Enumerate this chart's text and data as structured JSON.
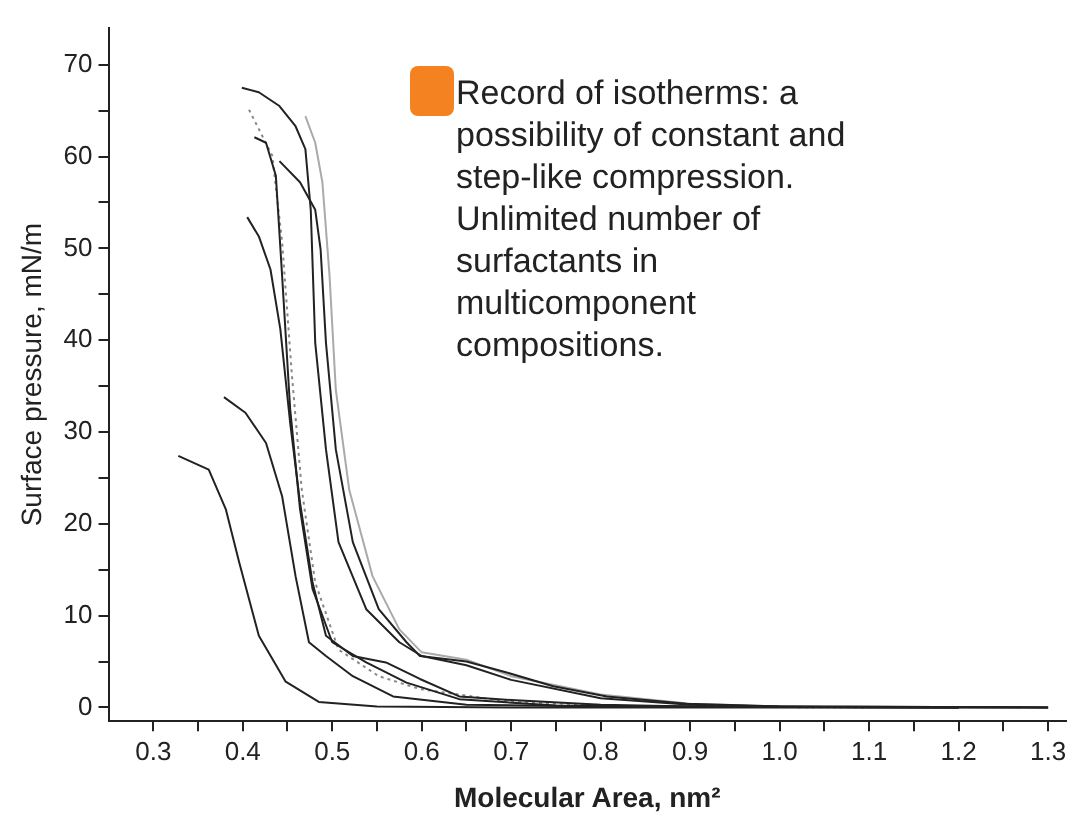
{
  "chart_data": {
    "type": "line",
    "xlabel": "Molecular Area, nm²",
    "ylabel": "Surface pressure, mN/m",
    "annotations": [
      "Record of isotherms: a possibility of constant and step-like compression. Unlimited number of surfactants in multicomponent compositions."
    ],
    "xlim": [
      0.25,
      1.32
    ],
    "ylim": [
      -1.5,
      74
    ],
    "xticks": [
      0.3,
      {
        "value": 0.35,
        "label": null
      },
      0.4,
      {
        "value": 0.45,
        "label": null
      },
      0.5,
      {
        "value": 0.55,
        "label": null
      },
      0.6,
      {
        "value": 0.65,
        "label": null
      },
      0.7,
      {
        "value": 0.75,
        "label": null
      },
      0.8,
      {
        "value": 0.85,
        "label": null
      },
      0.9,
      {
        "value": 0.95,
        "label": null
      },
      "1.0",
      {
        "value": 1.05,
        "label": null
      },
      1.1,
      {
        "value": 1.15,
        "label": null
      },
      1.2,
      {
        "value": 1.25,
        "label": null
      },
      1.3
    ],
    "yticks": [
      0,
      {
        "value": 5,
        "label": null
      },
      10,
      {
        "value": 15,
        "label": null
      },
      20,
      {
        "value": 25,
        "label": null
      },
      30,
      {
        "value": 35,
        "label": null
      },
      40,
      {
        "value": 45,
        "label": null
      },
      50,
      {
        "value": 55,
        "label": null
      },
      60,
      {
        "value": 65,
        "label": null
      },
      70
    ],
    "grid": false,
    "legend": false,
    "marker": "none",
    "series": [
      {
        "color": "#222222",
        "x": [
          0.328,
          0.362,
          0.381,
          0.396,
          0.418,
          0.448,
          0.485,
          0.55,
          0.7,
          1.0,
          1.3
        ],
        "values": [
          27.4,
          25.9,
          21.6,
          15.8,
          7.8,
          2.8,
          0.6,
          0.1,
          0.0,
          0.0,
          0.0
        ]
      },
      {
        "color": "#222222",
        "x": [
          0.379,
          0.403,
          0.426,
          0.444,
          0.459,
          0.474,
          0.493,
          0.523,
          0.568,
          0.65,
          0.8,
          1.2
        ],
        "values": [
          33.8,
          32.1,
          28.8,
          23.0,
          14.3,
          7.1,
          5.6,
          3.4,
          1.2,
          0.3,
          0.1,
          0.0
        ]
      },
      {
        "color": "#222222",
        "x": [
          0.405,
          0.418,
          0.431,
          0.442,
          0.453,
          0.464,
          0.478,
          0.493,
          0.523,
          0.56,
          0.598,
          0.642,
          0.7,
          0.8,
          0.9,
          1.2
        ],
        "values": [
          53.4,
          51.3,
          47.7,
          41.2,
          31.0,
          22.3,
          13.6,
          7.8,
          5.6,
          4.9,
          3.1,
          1.2,
          0.8,
          0.3,
          0.1,
          0.0
        ]
      },
      {
        "color": "#222222",
        "x": [
          0.413,
          0.426,
          0.437,
          0.444,
          0.453,
          0.464,
          0.478,
          0.5,
          0.538,
          0.583,
          0.642,
          0.75,
          0.9,
          1.2
        ],
        "values": [
          62.1,
          61.5,
          57.9,
          47.0,
          32.5,
          21.6,
          12.9,
          7.1,
          4.9,
          2.7,
          0.9,
          0.2,
          0.1,
          0.0
        ]
      },
      {
        "color": "#888888",
        "line_style": "dotted",
        "x": [
          0.407,
          0.433,
          0.444,
          0.455,
          0.466,
          0.481,
          0.507,
          0.552,
          0.598,
          0.7,
          0.85,
          1.1
        ],
        "values": [
          65.1,
          60.1,
          50.7,
          36.1,
          23.7,
          13.6,
          6.3,
          3.4,
          2.0,
          0.6,
          0.1,
          0.0
        ]
      },
      {
        "color": "#222222",
        "x": [
          0.399,
          0.418,
          0.441,
          0.459,
          0.47,
          0.476,
          0.481,
          0.493,
          0.507,
          0.538,
          0.575,
          0.6,
          0.65,
          0.7,
          0.8,
          0.9,
          1.0,
          1.3
        ],
        "values": [
          67.5,
          67.0,
          65.5,
          63.3,
          60.8,
          54.2,
          39.7,
          28.1,
          18.0,
          10.7,
          7.1,
          5.6,
          4.6,
          3.0,
          1.0,
          0.3,
          0.1,
          0.0
        ]
      },
      {
        "color": "#222222",
        "x": [
          0.441,
          0.464,
          0.481,
          0.487,
          0.493,
          0.504,
          0.523,
          0.552,
          0.583,
          0.598,
          0.65,
          0.695,
          0.747,
          0.807,
          0.896,
          1.0,
          1.3
        ],
        "values": [
          59.5,
          57.2,
          54.2,
          49.9,
          39.7,
          28.1,
          18.0,
          10.7,
          7.1,
          5.6,
          5.0,
          3.8,
          2.3,
          1.2,
          0.4,
          0.1,
          0.0
        ]
      },
      {
        "color": "#aaaaaa",
        "x": [
          0.47,
          0.481,
          0.489,
          0.497,
          0.504,
          0.519,
          0.545,
          0.575,
          0.6,
          0.65,
          0.7,
          0.8,
          0.9,
          1.0,
          1.27
        ],
        "values": [
          64.4,
          61.5,
          57.2,
          47.0,
          34.6,
          23.7,
          14.3,
          8.5,
          6.0,
          5.2,
          3.4,
          1.4,
          0.4,
          0.1,
          0.0
        ]
      }
    ]
  }
}
